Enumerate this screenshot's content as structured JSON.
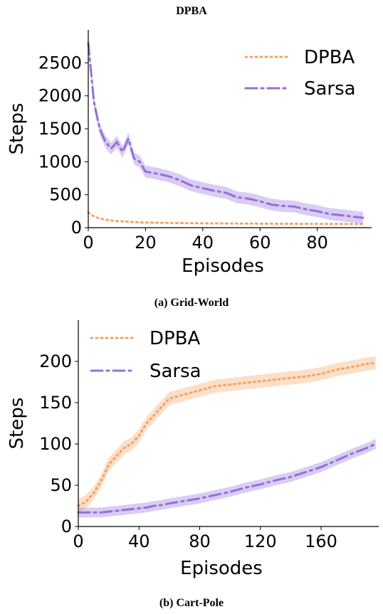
{
  "figure": {
    "title": "DPBA",
    "colors": {
      "dpba": "#f4a261",
      "sarsa": "#9370db"
    }
  },
  "chart_data": [
    {
      "type": "line",
      "caption": "(a) Grid-World",
      "xlabel": "Episodes",
      "ylabel": "Steps",
      "xlim": [
        0,
        99
      ],
      "ylim": [
        0,
        3000
      ],
      "xticks": [
        "0",
        "20",
        "40",
        "60",
        "80"
      ],
      "yticks": [
        "0",
        "500",
        "1000",
        "1500",
        "2000",
        "2500"
      ],
      "legend_position": "top-right",
      "grid": false,
      "x": [
        0,
        2,
        4,
        6,
        8,
        10,
        12,
        14,
        16,
        18,
        20,
        24,
        28,
        32,
        36,
        40,
        44,
        48,
        52,
        56,
        60,
        64,
        68,
        72,
        76,
        80,
        84,
        88,
        92,
        96
      ],
      "series": [
        {
          "name": "DPBA",
          "style": "dotted",
          "values": [
            230,
            170,
            140,
            120,
            110,
            100,
            95,
            90,
            85,
            80,
            78,
            75,
            72,
            70,
            68,
            66,
            65,
            64,
            63,
            62,
            61,
            60,
            60,
            59,
            58,
            58,
            57,
            57,
            56,
            55
          ]
        },
        {
          "name": "Sarsa",
          "style": "dashdot",
          "values": [
            2800,
            1900,
            1500,
            1300,
            1200,
            1300,
            1150,
            1350,
            1050,
            1000,
            850,
            820,
            780,
            720,
            640,
            600,
            560,
            530,
            460,
            440,
            400,
            350,
            330,
            320,
            280,
            250,
            210,
            190,
            170,
            150
          ],
          "band": 90
        }
      ]
    },
    {
      "type": "line",
      "caption": "(b) Cart-Pole",
      "xlabel": "Episodes",
      "ylabel": "Steps",
      "xlim": [
        0,
        198
      ],
      "ylim": [
        0,
        250
      ],
      "xticks": [
        "0",
        "40",
        "80",
        "120",
        "160"
      ],
      "yticks": [
        "0",
        "50",
        "100",
        "150",
        "200"
      ],
      "legend_position": "top-left",
      "grid": false,
      "x": [
        0,
        5,
        10,
        15,
        20,
        25,
        30,
        35,
        40,
        45,
        50,
        55,
        60,
        70,
        80,
        90,
        100,
        110,
        120,
        130,
        140,
        150,
        160,
        170,
        180,
        190,
        196
      ],
      "series": [
        {
          "name": "DPBA",
          "style": "dotted",
          "values": [
            25,
            30,
            40,
            55,
            75,
            85,
            95,
            100,
            110,
            125,
            135,
            145,
            155,
            160,
            165,
            170,
            172,
            174,
            176,
            178,
            180,
            182,
            185,
            190,
            193,
            197,
            198
          ],
          "band": 8
        },
        {
          "name": "Sarsa",
          "style": "dashdot",
          "values": [
            17,
            17,
            17,
            17,
            18,
            19,
            20,
            21,
            22,
            23,
            25,
            26,
            28,
            31,
            34,
            38,
            42,
            47,
            51,
            56,
            60,
            66,
            72,
            80,
            88,
            95,
            100
          ],
          "band": 6
        }
      ]
    }
  ]
}
